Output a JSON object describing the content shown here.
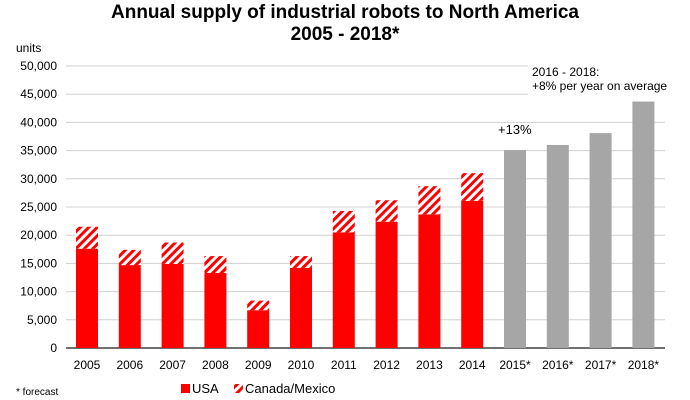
{
  "chart_data": {
    "type": "bar",
    "stacked": true,
    "title": "Annual supply of industrial robots to North America",
    "subtitle": "2005 - 2018*",
    "ylabel": "units",
    "xlabel": "",
    "ylim": [
      0,
      50000
    ],
    "yticks": [
      0,
      5000,
      10000,
      15000,
      20000,
      25000,
      30000,
      35000,
      40000,
      45000,
      50000
    ],
    "ytick_labels": [
      "0",
      "5,000",
      "10,000",
      "15,000",
      "20,000",
      "25,000",
      "30,000",
      "35,000",
      "40,000",
      "45,000",
      "50,000"
    ],
    "grid": true,
    "categories": [
      "2005",
      "2006",
      "2007",
      "2008",
      "2009",
      "2010",
      "2011",
      "2012",
      "2013",
      "2014",
      "2015*",
      "2016*",
      "2017*",
      "2018*"
    ],
    "series": [
      {
        "name": "USA",
        "color": "#ff0000",
        "values": [
          17600,
          14700,
          14900,
          13300,
          6700,
          14200,
          20500,
          22400,
          23700,
          26100,
          null,
          null,
          null,
          null
        ]
      },
      {
        "name": "Canada/Mexico",
        "color": "#ff0000",
        "pattern": "hatched",
        "values": [
          3900,
          2700,
          3800,
          3000,
          1700,
          2100,
          3800,
          3800,
          5000,
          4900,
          null,
          null,
          null,
          null
        ]
      },
      {
        "name": "",
        "color": "#a6a6a6",
        "values": [
          null,
          null,
          null,
          null,
          null,
          null,
          null,
          null,
          null,
          null,
          35100,
          36000,
          38100,
          43700
        ]
      }
    ],
    "legend": {
      "placement": "bottom",
      "entries": [
        "USA",
        "Canada/Mexico"
      ]
    },
    "annotations": [
      {
        "text": "+13%",
        "at": "2015*"
      },
      {
        "lines": [
          "2016 - 2018:",
          "+8% per year on average"
        ],
        "at": "2016*-2018*"
      }
    ],
    "footnote": "* forecast"
  }
}
